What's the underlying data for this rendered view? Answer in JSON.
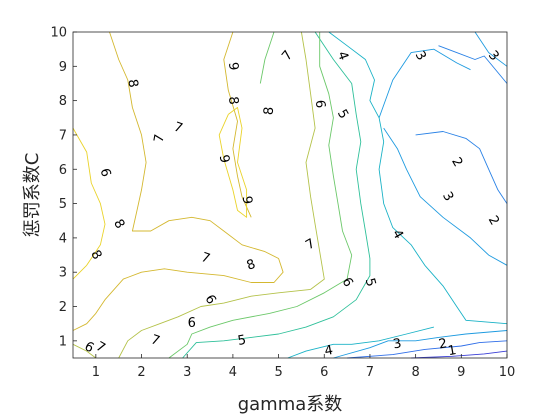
{
  "chart_data": {
    "type": "contour",
    "xlabel": "gamma系数",
    "ylabel": "惩罚系数C",
    "xlim": [
      0.5,
      10
    ],
    "ylim": [
      0.5,
      10
    ],
    "x_ticks": [
      "1",
      "2",
      "3",
      "4",
      "5",
      "6",
      "7",
      "8",
      "9",
      "10"
    ],
    "y_ticks": [
      "1",
      "2",
      "3",
      "4",
      "5",
      "6",
      "7",
      "8",
      "9",
      "10"
    ],
    "grid": false,
    "legend": "none",
    "levels": [
      {
        "level": 1,
        "color": "#3b3fd6",
        "lines": [
          [
            [
              7.9,
              0.5
            ],
            [
              8.8,
              0.55
            ],
            [
              9.5,
              0.62
            ],
            [
              10,
              0.7
            ]
          ]
        ]
      },
      {
        "level": 2,
        "color": "#2f6ee8",
        "lines": [
          [
            [
              6.5,
              0.5
            ],
            [
              7.5,
              0.6
            ],
            [
              8.2,
              0.75
            ],
            [
              9,
              0.85
            ],
            [
              9.4,
              0.95
            ],
            [
              10,
              1.0
            ]
          ]
        ]
      },
      {
        "level": 2,
        "color": "#2a82e6",
        "lines": [
          [
            [
              8.5,
              9.6
            ],
            [
              8.9,
              9.4
            ],
            [
              9.3,
              9.2
            ],
            [
              9.5,
              9.3
            ],
            [
              10,
              8.5
            ]
          ],
          [
            [
              8.0,
              7.0
            ],
            [
              8.6,
              7.1
            ],
            [
              9.1,
              6.9
            ],
            [
              9.4,
              6.6
            ],
            [
              9.6,
              6.0
            ],
            [
              9.8,
              5.4
            ],
            [
              10,
              5.0
            ]
          ]
        ]
      },
      {
        "level": 3,
        "color": "#1f9be0",
        "lines": [
          [
            [
              9.3,
              10
            ],
            [
              9.6,
              9.4
            ],
            [
              10,
              9.0
            ]
          ],
          [
            [
              7.2,
              7.5
            ],
            [
              7.5,
              8.6
            ],
            [
              7.9,
              9.4
            ],
            [
              8.4,
              9.5
            ],
            [
              8.9,
              9.1
            ],
            [
              9.2,
              8.9
            ]
          ],
          [
            [
              7.3,
              7.2
            ],
            [
              7.6,
              6.6
            ],
            [
              7.8,
              6.0
            ],
            [
              8.1,
              5.2
            ],
            [
              8.6,
              4.6
            ],
            [
              9.2,
              4.0
            ],
            [
              9.6,
              3.5
            ],
            [
              10,
              3.2
            ]
          ],
          [
            [
              6.2,
              0.5
            ],
            [
              7.0,
              0.8
            ],
            [
              7.4,
              1.0
            ],
            [
              8.0,
              1.0
            ],
            [
              8.5,
              1.1
            ],
            [
              9.1,
              1.2
            ],
            [
              10,
              1.3
            ]
          ]
        ]
      },
      {
        "level": 4,
        "color": "#1ab2c6",
        "lines": [
          [
            [
              6.1,
              10
            ],
            [
              6.5,
              9.6
            ],
            [
              6.9,
              9.2
            ],
            [
              7.1,
              8.6
            ],
            [
              7.0,
              8.0
            ],
            [
              7.2,
              7.5
            ],
            [
              7.3,
              6.8
            ],
            [
              7.2,
              6.0
            ],
            [
              7.3,
              5.0
            ],
            [
              7.5,
              4.3
            ],
            [
              7.9,
              3.8
            ],
            [
              8.2,
              3.2
            ],
            [
              8.6,
              2.6
            ],
            [
              8.9,
              2.0
            ],
            [
              9.1,
              1.6
            ],
            [
              10,
              1.5
            ]
          ],
          [
            [
              5.2,
              0.5
            ],
            [
              5.6,
              0.7
            ],
            [
              6.2,
              0.9
            ],
            [
              6.6,
              0.9
            ],
            [
              7.2,
              1.0
            ],
            [
              7.8,
              1.2
            ],
            [
              8.4,
              1.4
            ]
          ]
        ]
      },
      {
        "level": 5,
        "color": "#2fc09a",
        "lines": [
          [
            [
              5.8,
              10
            ],
            [
              6.2,
              9.2
            ],
            [
              6.6,
              8.5
            ],
            [
              6.7,
              7.6
            ],
            [
              6.8,
              6.8
            ],
            [
              6.7,
              6.0
            ],
            [
              6.8,
              5.0
            ],
            [
              6.9,
              4.2
            ],
            [
              7.0,
              3.4
            ],
            [
              7.0,
              2.9
            ],
            [
              6.7,
              2.2
            ],
            [
              6.2,
              1.7
            ],
            [
              5.6,
              1.4
            ],
            [
              5.0,
              1.2
            ],
            [
              4.4,
              1.1
            ],
            [
              3.8,
              1.0
            ],
            [
              3.2,
              0.95
            ],
            [
              2.9,
              0.5
            ]
          ]
        ]
      },
      {
        "level": 6,
        "color": "#6cc86a",
        "lines": [
          [
            [
              5.9,
              10
            ],
            [
              5.9,
              9.0
            ],
            [
              6.1,
              8.2
            ],
            [
              6.2,
              7.5
            ],
            [
              6.1,
              6.7
            ],
            [
              6.2,
              5.8
            ],
            [
              6.3,
              5.0
            ],
            [
              6.4,
              4.2
            ],
            [
              6.6,
              3.5
            ],
            [
              6.5,
              2.8
            ],
            [
              6.0,
              2.4
            ],
            [
              5.4,
              2.0
            ],
            [
              4.8,
              1.8
            ],
            [
              4.0,
              1.6
            ],
            [
              3.5,
              1.4
            ],
            [
              3.1,
              1.2
            ],
            [
              3.0,
              0.9
            ],
            [
              2.6,
              0.5
            ]
          ],
          [
            [
              4.9,
              10
            ],
            [
              4.7,
              9.2
            ],
            [
              4.6,
              8.5
            ]
          ]
        ]
      },
      {
        "level": 7,
        "color": "#b4c24a",
        "lines": [
          [
            [
              5.5,
              10
            ],
            [
              5.6,
              9.2
            ],
            [
              5.7,
              8.2
            ],
            [
              5.8,
              7.2
            ],
            [
              5.6,
              6.2
            ],
            [
              5.7,
              5.2
            ],
            [
              5.8,
              4.4
            ],
            [
              5.9,
              3.6
            ],
            [
              6.0,
              2.8
            ],
            [
              5.7,
              2.5
            ],
            [
              5.0,
              2.4
            ],
            [
              4.4,
              2.3
            ],
            [
              3.8,
              2.1
            ],
            [
              3.3,
              2.0
            ],
            [
              2.8,
              1.7
            ],
            [
              2.4,
              1.5
            ],
            [
              2.0,
              1.3
            ],
            [
              1.7,
              1.0
            ],
            [
              1.5,
              0.5
            ]
          ],
          [
            [
              1.0,
              0.5
            ],
            [
              0.8,
              0.7
            ],
            [
              0.5,
              0.9
            ]
          ]
        ]
      },
      {
        "level": 8,
        "color": "#d4b830",
        "lines": [
          [
            [
              1.3,
              10
            ],
            [
              1.5,
              9.2
            ],
            [
              1.7,
              8.6
            ],
            [
              1.8,
              7.8
            ],
            [
              2.0,
              7.0
            ],
            [
              2.1,
              6.2
            ],
            [
              2.0,
              5.4
            ],
            [
              1.9,
              4.8
            ],
            [
              1.8,
              4.2
            ],
            [
              2.2,
              4.2
            ],
            [
              2.6,
              4.5
            ],
            [
              3.1,
              4.6
            ],
            [
              3.5,
              4.5
            ],
            [
              3.8,
              4.2
            ],
            [
              4.2,
              3.8
            ],
            [
              4.7,
              3.6
            ],
            [
              5.0,
              3.4
            ],
            [
              5.1,
              3.0
            ],
            [
              4.9,
              2.7
            ],
            [
              4.4,
              2.7
            ],
            [
              3.8,
              2.9
            ],
            [
              3.0,
              3.0
            ],
            [
              2.5,
              3.1
            ],
            [
              2.0,
              3.0
            ],
            [
              1.6,
              2.8
            ],
            [
              1.2,
              2.2
            ],
            [
              1.0,
              1.8
            ],
            [
              0.8,
              1.5
            ],
            [
              0.5,
              1.3
            ]
          ],
          [
            [
              4.0,
              10
            ],
            [
              3.8,
              9.2
            ],
            [
              3.9,
              8.3
            ],
            [
              4.1,
              7.4
            ],
            [
              4.0,
              6.6
            ],
            [
              4.1,
              5.8
            ],
            [
              4.2,
              5.2
            ],
            [
              4.4,
              4.6
            ]
          ]
        ]
      },
      {
        "level": 9,
        "color": "#ead32a",
        "lines": [
          [
            [
              0.5,
              7.2
            ],
            [
              0.8,
              6.5
            ],
            [
              0.9,
              5.6
            ],
            [
              1.1,
              5.0
            ],
            [
              1.2,
              4.4
            ],
            [
              1.1,
              3.8
            ],
            [
              0.8,
              3.2
            ],
            [
              0.5,
              2.8
            ]
          ],
          [
            [
              3.9,
              7.6
            ],
            [
              3.7,
              7.0
            ],
            [
              3.8,
              6.3
            ],
            [
              4.0,
              5.4
            ],
            [
              4.1,
              4.8
            ],
            [
              4.3,
              4.6
            ],
            [
              4.3,
              5.4
            ],
            [
              4.1,
              6.2
            ],
            [
              4.2,
              7.2
            ],
            [
              4.1,
              7.8
            ],
            [
              3.9,
              7.6
            ]
          ]
        ]
      }
    ],
    "contour_labels": [
      {
        "text": "8",
        "x": 1.8,
        "y": 8.5,
        "angle": 80
      },
      {
        "text": "7",
        "x": 2.4,
        "y": 6.9,
        "angle": -80
      },
      {
        "text": "7",
        "x": 2.8,
        "y": 7.2,
        "angle": 20
      },
      {
        "text": "9",
        "x": 4.0,
        "y": 9.0,
        "angle": 85
      },
      {
        "text": "8",
        "x": 4.0,
        "y": 8.0,
        "angle": 85
      },
      {
        "text": "9",
        "x": 3.8,
        "y": 6.3,
        "angle": 80
      },
      {
        "text": "9",
        "x": 4.3,
        "y": 5.1,
        "angle": 85
      },
      {
        "text": "8",
        "x": 4.8,
        "y": 7.7,
        "angle": -85
      },
      {
        "text": "7",
        "x": 5.2,
        "y": 9.3,
        "angle": -50
      },
      {
        "text": "6",
        "x": 5.9,
        "y": 7.9,
        "angle": 85
      },
      {
        "text": "5",
        "x": 6.4,
        "y": 7.6,
        "angle": 60
      },
      {
        "text": "4",
        "x": 6.4,
        "y": 9.3,
        "angle": 70
      },
      {
        "text": "3",
        "x": 8.1,
        "y": 9.3,
        "angle": 60
      },
      {
        "text": "3",
        "x": 9.7,
        "y": 9.3,
        "angle": 50
      },
      {
        "text": "2",
        "x": 8.9,
        "y": 6.2,
        "angle": 60
      },
      {
        "text": "3",
        "x": 8.7,
        "y": 5.2,
        "angle": 60
      },
      {
        "text": "2",
        "x": 9.7,
        "y": 4.5,
        "angle": 60
      },
      {
        "text": "4",
        "x": 7.6,
        "y": 4.1,
        "angle": 60
      },
      {
        "text": "7",
        "x": 5.7,
        "y": 3.8,
        "angle": -30
      },
      {
        "text": "6",
        "x": 6.5,
        "y": 2.7,
        "angle": 60
      },
      {
        "text": "5",
        "x": 7.0,
        "y": 2.7,
        "angle": 75
      },
      {
        "text": "6",
        "x": 1.2,
        "y": 5.9,
        "angle": 75
      },
      {
        "text": "8",
        "x": 1.5,
        "y": 4.4,
        "angle": 60
      },
      {
        "text": "8",
        "x": 1.0,
        "y": 3.5,
        "angle": 60
      },
      {
        "text": "7",
        "x": 3.4,
        "y": 3.4,
        "angle": 20
      },
      {
        "text": "8",
        "x": 4.4,
        "y": 3.2,
        "angle": -20
      },
      {
        "text": "6",
        "x": 3.5,
        "y": 2.2,
        "angle": 60
      },
      {
        "text": "6",
        "x": 3.1,
        "y": 1.5,
        "angle": 0
      },
      {
        "text": "5",
        "x": 4.2,
        "y": 1.0,
        "angle": -10
      },
      {
        "text": "7",
        "x": 2.3,
        "y": 1.0,
        "angle": 20
      },
      {
        "text": "6",
        "x": 0.85,
        "y": 0.8,
        "angle": 30
      },
      {
        "text": "7",
        "x": 1.1,
        "y": 0.8,
        "angle": 30
      },
      {
        "text": "4",
        "x": 6.1,
        "y": 0.7,
        "angle": -10
      },
      {
        "text": "3",
        "x": 7.6,
        "y": 0.9,
        "angle": -10
      },
      {
        "text": "2",
        "x": 8.6,
        "y": 0.9,
        "angle": -10
      },
      {
        "text": "1",
        "x": 8.8,
        "y": 0.7,
        "angle": -10
      }
    ]
  }
}
